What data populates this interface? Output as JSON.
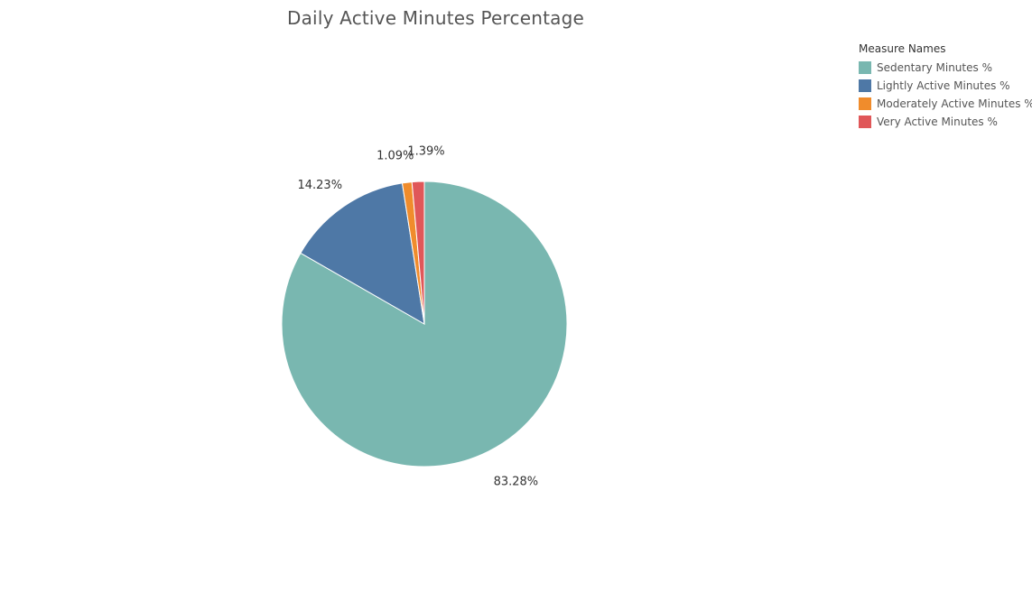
{
  "chart_data": {
    "type": "pie",
    "title": "Daily Active Minutes Percentage",
    "legend_title": "Measure Names",
    "legend_position": "top-right",
    "slices": [
      {
        "name": "Sedentary Minutes %",
        "value": 83.28,
        "label": "83.28%",
        "color": "#79b7b0"
      },
      {
        "name": "Lightly Active Minutes %",
        "value": 14.23,
        "label": "14.23%",
        "color": "#4e78a6"
      },
      {
        "name": "Moderately Active Minutes %",
        "value": 1.09,
        "label": "1.09%",
        "color": "#f08c2c"
      },
      {
        "name": "Very Active Minutes %",
        "value": 1.39,
        "label": "1.39%",
        "color": "#e05759"
      }
    ]
  }
}
